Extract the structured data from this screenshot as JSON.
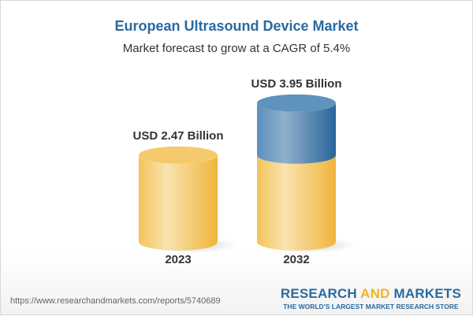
{
  "title": "European Ultrasound Device Market",
  "subtitle": "Market forecast to grow at a CAGR of 5.4%",
  "chart_data": {
    "type": "bar",
    "style": "3d-cylinder",
    "categories": [
      "2023",
      "2032"
    ],
    "values": [
      2.47,
      3.95
    ],
    "data_labels": [
      "USD 2.47 Billion",
      "USD 3.95 Billion"
    ],
    "colors": {
      "base": "#f2c14e",
      "growth": "#3f78a8"
    }
  },
  "footer": {
    "url": "https://www.researchandmarkets.com/reports/5740689",
    "logo_part1": "RESEARCH ",
    "logo_part2": "AND",
    "logo_part3": " MARKETS",
    "tagline": "THE WORLD'S LARGEST MARKET RESEARCH STORE"
  }
}
